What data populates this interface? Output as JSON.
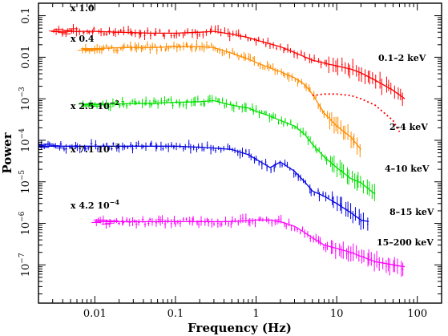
{
  "chart_data": {
    "type": "line",
    "xlabel": "Frequency (Hz)",
    "ylabel": "Power",
    "xscale": "log",
    "yscale": "log",
    "xlim": [
      0.002,
      200
    ],
    "ylim": [
      1.2e-08,
      0.2
    ],
    "x_ticks": [
      {
        "value": 0.01,
        "label": "0.01"
      },
      {
        "value": 0.1,
        "label": "0.1"
      },
      {
        "value": 1,
        "label": "1"
      },
      {
        "value": 10,
        "label": "10"
      },
      {
        "value": 100,
        "label": "100"
      }
    ],
    "y_ticks": [
      {
        "value": 0.1,
        "label": "0.1",
        "exp": ""
      },
      {
        "value": 0.01,
        "label": "0.01",
        "exp": ""
      },
      {
        "value": 0.001,
        "label": "10",
        "exp": "−3"
      },
      {
        "value": 0.0001,
        "label": "10",
        "exp": "−4"
      },
      {
        "value": 1e-05,
        "label": "10",
        "exp": "−5"
      },
      {
        "value": 1e-06,
        "label": "10",
        "exp": "−6"
      },
      {
        "value": 1e-07,
        "label": "10",
        "exp": "−7"
      }
    ],
    "series": [
      {
        "name": "0.1–2 keV",
        "multiplier": "x 1.0",
        "color": "#ff0000",
        "x": [
          0.003,
          0.005,
          0.01,
          0.02,
          0.05,
          0.1,
          0.2,
          0.3,
          0.5,
          0.8,
          1,
          1.5,
          2,
          3,
          5,
          8,
          10,
          15,
          20,
          30,
          50,
          70
        ],
        "y": [
          0.042,
          0.042,
          0.042,
          0.04,
          0.038,
          0.038,
          0.04,
          0.042,
          0.036,
          0.03,
          0.026,
          0.021,
          0.018,
          0.013,
          0.0085,
          0.0068,
          0.0062,
          0.0052,
          0.0042,
          0.0028,
          0.0016,
          0.001
        ]
      },
      {
        "name": "2–4 keV",
        "multiplier": "x 0.4",
        "color": "#ff8c00",
        "x": [
          0.007,
          0.01,
          0.02,
          0.05,
          0.1,
          0.2,
          0.3,
          0.5,
          0.8,
          1,
          1.5,
          2,
          3,
          4,
          5,
          7,
          10,
          15,
          20
        ],
        "y": [
          0.016,
          0.016,
          0.017,
          0.017,
          0.018,
          0.018,
          0.017,
          0.0125,
          0.009,
          0.0075,
          0.0055,
          0.0045,
          0.0032,
          0.0022,
          0.0013,
          0.00045,
          0.00022,
          0.00012,
          6e-05
        ]
      },
      {
        "name": "4–10 keV",
        "multiplier": "x 2.5 10",
        "multiplier_exp": "−2",
        "color": "#00e000",
        "x": [
          0.007,
          0.01,
          0.02,
          0.05,
          0.1,
          0.2,
          0.3,
          0.5,
          0.8,
          1,
          1.5,
          2,
          3,
          4,
          5,
          7,
          10,
          15,
          20,
          30
        ],
        "y": [
          0.00072,
          0.00072,
          0.00075,
          0.00078,
          0.00082,
          0.00085,
          0.0009,
          0.0007,
          0.0006,
          0.0005,
          0.00038,
          0.0003,
          0.00022,
          0.00014,
          8e-05,
          4e-05,
          2.2e-05,
          1.2e-05,
          9.5e-06,
          5e-06
        ]
      },
      {
        "name": "8–15 keV",
        "multiplier": "x 7.1 10",
        "multiplier_exp": "−3",
        "color": "#0000e0",
        "x": [
          0.002,
          0.005,
          0.01,
          0.02,
          0.05,
          0.1,
          0.2,
          0.3,
          0.5,
          0.8,
          1,
          1.5,
          2,
          3,
          4,
          5,
          7,
          10,
          15,
          20,
          25
        ],
        "y": [
          7.2e-05,
          7.2e-05,
          7.2e-05,
          7.2e-05,
          7.2e-05,
          7.2e-05,
          6.8e-05,
          6.5e-05,
          6e-05,
          4.5e-05,
          3.5e-05,
          2.2e-05,
          3e-05,
          1.8e-05,
          1e-05,
          6e-06,
          4.5e-06,
          3e-06,
          1.8e-06,
          1.2e-06,
          1.1e-06
        ]
      },
      {
        "name": "15–200 keV",
        "multiplier": "x 4.2 10",
        "multiplier_exp": "−4",
        "color": "#ff00ff",
        "x": [
          0.01,
          0.02,
          0.05,
          0.1,
          0.2,
          0.5,
          1,
          1.5,
          2,
          3,
          4,
          5,
          7,
          10,
          15,
          20,
          30,
          50,
          70
        ],
        "y": [
          1.1e-06,
          1.1e-06,
          1.1e-06,
          1.1e-06,
          1.1e-06,
          1.1e-06,
          1.2e-06,
          1.2e-06,
          1.1e-06,
          8.5e-07,
          6e-07,
          4.5e-07,
          3e-07,
          2.5e-07,
          2e-07,
          1.6e-07,
          1.2e-07,
          1e-07,
          9e-08
        ]
      }
    ],
    "reference_curve": {
      "color": "#ff0000",
      "style": "dotted",
      "x": [
        5,
        7,
        10,
        15,
        20,
        30,
        50,
        60
      ],
      "y": [
        0.0012,
        0.0013,
        0.0013,
        0.0012,
        0.001,
        0.0007,
        0.0003,
        0.00016
      ]
    }
  }
}
